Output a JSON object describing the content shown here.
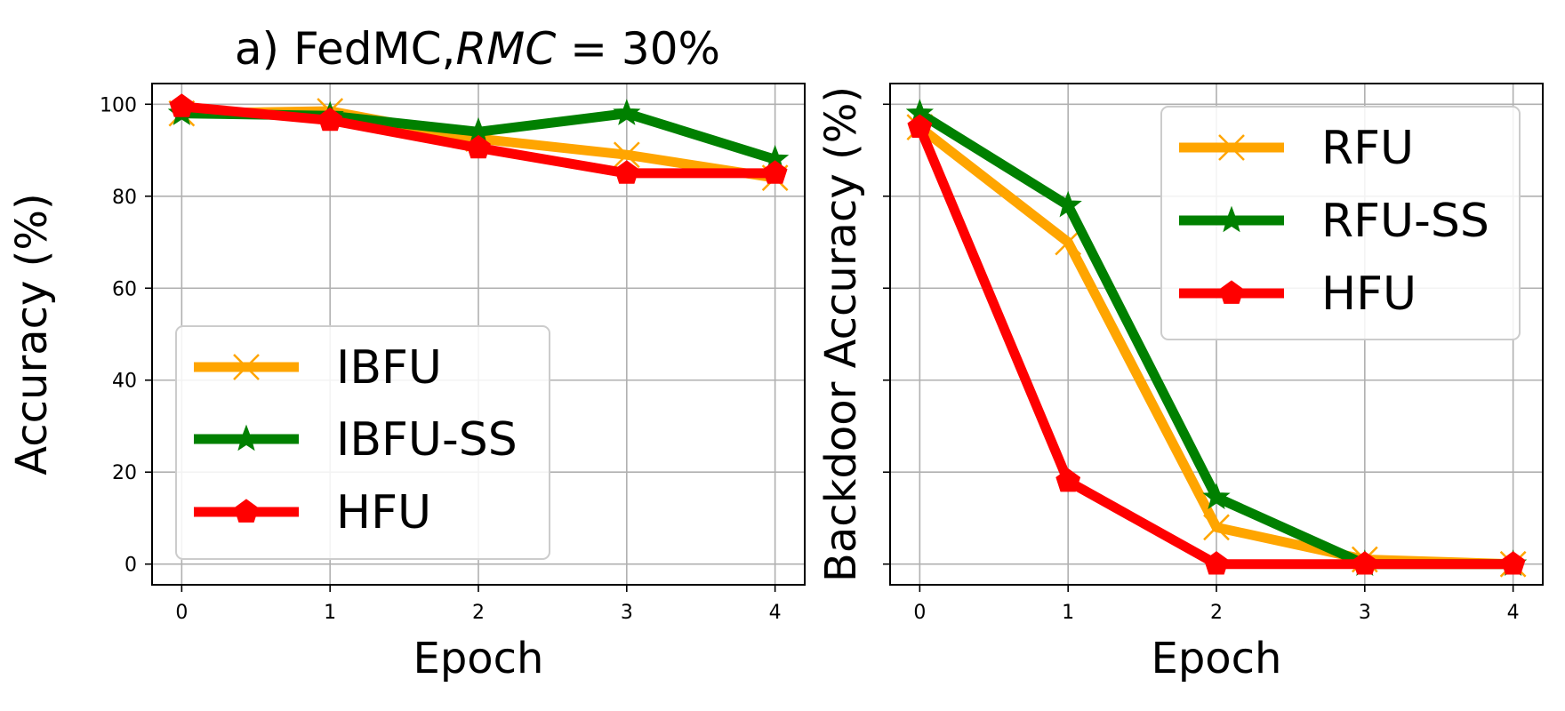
{
  "chart_data": [
    {
      "type": "line",
      "title": "a) FedMC,RMC = 30%",
      "title_parts": {
        "prefix": "a) FedMC,",
        "italic": "RMC",
        "suffix": " = 30%"
      },
      "xlabel": "Epoch",
      "ylabel": "Accuracy (%)",
      "x": [
        0,
        1,
        2,
        3,
        4
      ],
      "xlim": [
        -0.2,
        4.2
      ],
      "ylim": [
        -4.5,
        104.5
      ],
      "xticks": [
        0,
        1,
        2,
        3,
        4
      ],
      "yticks": [
        0,
        20,
        40,
        60,
        80,
        100
      ],
      "show_ytick_labels": true,
      "grid": true,
      "legend_position": "lower-left",
      "series": [
        {
          "name": "IBFU",
          "color": "#FFA500",
          "marker": "x",
          "values": [
            98,
            98.5,
            92.5,
            89,
            84
          ]
        },
        {
          "name": "IBFU-SS",
          "color": "#008000",
          "marker": "star",
          "values": [
            98,
            97.5,
            94,
            98,
            88
          ]
        },
        {
          "name": "HFU",
          "color": "#FF0000",
          "marker": "pentagon",
          "values": [
            99.5,
            96.5,
            90.5,
            85,
            85
          ]
        }
      ]
    },
    {
      "type": "line",
      "title": "",
      "xlabel": "Epoch",
      "ylabel": "Backdoor Accuracy (%)",
      "x": [
        0,
        1,
        2,
        3,
        4
      ],
      "xlim": [
        -0.2,
        4.2
      ],
      "ylim": [
        -4.5,
        104.5
      ],
      "xticks": [
        0,
        1,
        2,
        3,
        4
      ],
      "yticks": [
        0,
        20,
        40,
        60,
        80,
        100
      ],
      "show_ytick_labels": false,
      "grid": true,
      "legend_position": "upper-right",
      "series": [
        {
          "name": "RFU",
          "color": "#FFA500",
          "marker": "x",
          "values": [
            95,
            70,
            8,
            1,
            0
          ]
        },
        {
          "name": "RFU-SS",
          "color": "#008000",
          "marker": "star",
          "values": [
            98,
            78,
            14.5,
            0,
            0
          ]
        },
        {
          "name": "HFU",
          "color": "#FF0000",
          "marker": "pentagon",
          "values": [
            95,
            18,
            0,
            0,
            0
          ]
        }
      ]
    }
  ]
}
